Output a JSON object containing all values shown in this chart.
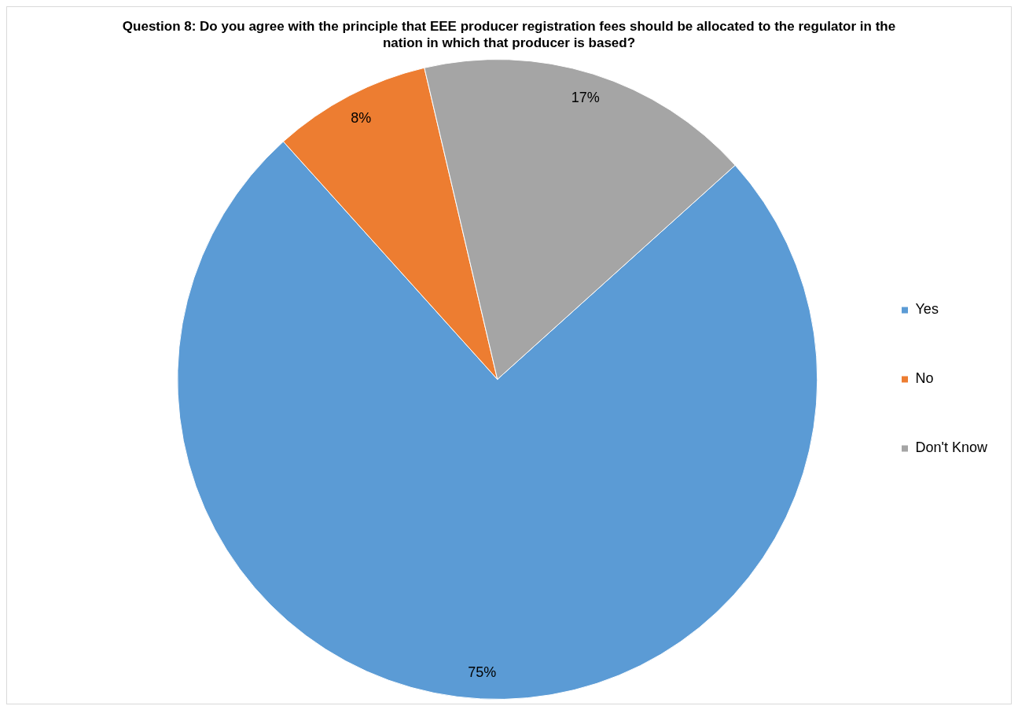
{
  "chart_data": {
    "type": "pie",
    "title": "Question 8: Do you agree with the principle that EEE producer registration fees should be allocated to the regulator in the nation in which that producer is based?",
    "categories": [
      "Yes",
      "No",
      "Don't Know"
    ],
    "values": [
      75,
      8,
      17
    ],
    "colors": [
      "#5b9bd5",
      "#ed7d31",
      "#a5a5a5"
    ],
    "value_labels": [
      "75%",
      "8%",
      "17%"
    ],
    "legend": "right"
  }
}
